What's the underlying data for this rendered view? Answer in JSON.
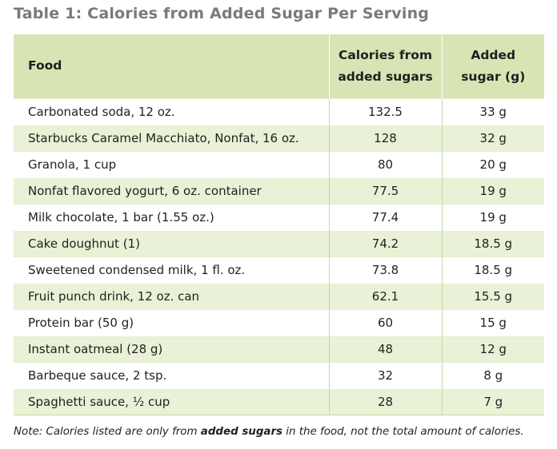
{
  "title": "Table 1: Calories from Added Sugar Per Serving",
  "table": {
    "headers": {
      "food": "Food",
      "calories_line1": "Calories from",
      "calories_line2": "added sugars",
      "sugar_line1": "Added",
      "sugar_line2": "sugar (g)"
    },
    "rows": [
      {
        "food": "Carbonated soda, 12 oz.",
        "calories": "132.5",
        "sugar": "33 g"
      },
      {
        "food": "Starbucks Caramel Macchiato, Nonfat, 16 oz.",
        "calories": "128",
        "sugar": "32 g"
      },
      {
        "food": "Granola, 1 cup",
        "calories": "80",
        "sugar": "20 g"
      },
      {
        "food": "Nonfat flavored yogurt, 6 oz. container",
        "calories": "77.5",
        "sugar": "19 g"
      },
      {
        "food": "Milk chocolate, 1 bar (1.55 oz.)",
        "calories": "77.4",
        "sugar": "19 g"
      },
      {
        "food": "Cake doughnut (1)",
        "calories": "74.2",
        "sugar": "18.5 g"
      },
      {
        "food": "Sweetened condensed milk, 1 fl. oz.",
        "calories": "73.8",
        "sugar": "18.5 g"
      },
      {
        "food": "Fruit punch drink, 12 oz. can",
        "calories": "62.1",
        "sugar": "15.5 g"
      },
      {
        "food": "Protein bar (50 g)",
        "calories": "60",
        "sugar": "15 g"
      },
      {
        "food": "Instant oatmeal (28 g)",
        "calories": "48",
        "sugar": "12 g"
      },
      {
        "food": "Barbeque sauce, 2 tsp.",
        "calories": "32",
        "sugar": "8 g"
      },
      {
        "food": "Spaghetti sauce, ½ cup",
        "calories": "28",
        "sugar": "7 g"
      }
    ]
  },
  "note": {
    "prefix": "Note: Calories listed are only from ",
    "emphasis": "added sugars",
    "suffix": " in the food, not the total amount of calories."
  }
}
